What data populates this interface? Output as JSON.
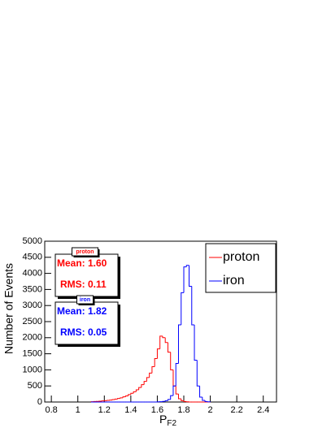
{
  "chart_data": {
    "type": "histogram",
    "xlabel": "P",
    "xlabel_sub": "F2",
    "ylabel": "Number of Events",
    "bins": [
      1.1,
      1.12,
      1.14,
      1.16,
      1.18,
      1.2,
      1.22,
      1.24,
      1.26,
      1.28,
      1.3,
      1.32,
      1.34,
      1.36,
      1.38,
      1.4,
      1.42,
      1.44,
      1.46,
      1.48,
      1.5,
      1.52,
      1.54,
      1.56,
      1.58,
      1.6,
      1.62,
      1.64,
      1.66,
      1.68,
      1.7,
      1.72,
      1.74,
      1.76,
      1.78,
      1.8,
      1.82,
      1.84,
      1.86,
      1.88,
      1.9,
      1.92,
      1.94,
      1.96,
      1.98,
      2.0
    ],
    "series": [
      {
        "name": "proton",
        "color": "#ff0000",
        "values": [
          10,
          15,
          20,
          25,
          35,
          40,
          50,
          60,
          75,
          90,
          110,
          130,
          160,
          190,
          230,
          270,
          320,
          380,
          450,
          540,
          640,
          760,
          900,
          1100,
          1350,
          1650,
          2050,
          2000,
          1850,
          1550,
          1000,
          500,
          250,
          100,
          40,
          15,
          5,
          0,
          0,
          0,
          0,
          0,
          0,
          0,
          0
        ],
        "stats": {
          "title": "proton",
          "mean": "Mean: 1.60",
          "rms": "RMS: 0.11"
        }
      },
      {
        "name": "iron",
        "color": "#0000ff",
        "values": [
          0,
          0,
          0,
          0,
          0,
          0,
          0,
          0,
          0,
          0,
          0,
          0,
          0,
          0,
          0,
          0,
          0,
          0,
          0,
          0,
          0,
          0,
          0,
          0,
          0,
          5,
          10,
          20,
          40,
          80,
          200,
          500,
          1200,
          2400,
          3400,
          4200,
          4250,
          3600,
          2400,
          1300,
          500,
          150,
          50,
          15,
          5
        ],
        "stats": {
          "title": "iron",
          "mean": "Mean: 1.82",
          "rms": "RMS: 0.05"
        }
      }
    ],
    "xlim": [
      0.75,
      2.5
    ],
    "ylim": [
      0,
      5000
    ],
    "xticks": [
      0.8,
      1,
      1.2,
      1.4,
      1.6,
      1.8,
      2,
      2.2,
      2.4
    ],
    "yticks": [
      0,
      500,
      1000,
      1500,
      2000,
      2500,
      3000,
      3500,
      4000,
      4500,
      5000
    ],
    "legend": "upper right"
  }
}
